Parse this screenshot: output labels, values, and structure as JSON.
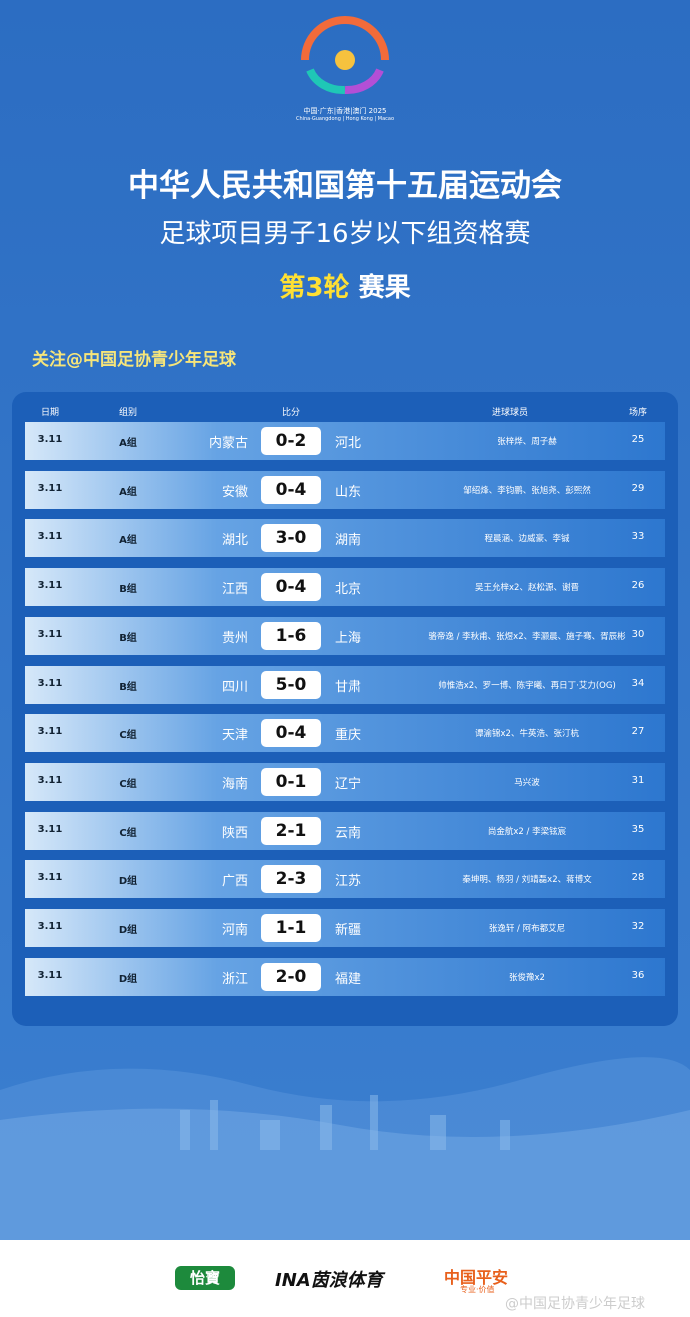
{
  "logo": {
    "caption": "中国·广东|香港|澳门 2025",
    "caption_en": "China·Guangdong | Hong Kong | Macao"
  },
  "header": {
    "title": "中华人民共和国第十五届运动会",
    "subtitle": "足球项目男子16岁以下组资格赛",
    "round": "第3轮",
    "results": "赛果"
  },
  "follow": "关注@中国足协青少年足球",
  "table": {
    "columns": [
      "日期",
      "组别",
      "比分",
      "进球球员",
      "场序"
    ],
    "rows": [
      [
        "3.11",
        "A组",
        "内蒙古",
        "0-2",
        "河北",
        "张梓烨、周子赫",
        25
      ],
      [
        "3.11",
        "A组",
        "安徽",
        "0-4",
        "山东",
        "邹绍烽、李钧鹏、张旭尧、彭熙然",
        29
      ],
      [
        "3.11",
        "A组",
        "湖北",
        "3-0",
        "湖南",
        "程晨涵、边威豪、李铖",
        33
      ],
      [
        "3.11",
        "B组",
        "江西",
        "0-4",
        "北京",
        "吴王允梓x2、赵松源、谢晋",
        26
      ],
      [
        "3.11",
        "B组",
        "贵州",
        "1-6",
        "上海",
        "骆帝逸 / 李秋甫、张煜x2、李灏晨、施子骞、胥辰彬",
        30
      ],
      [
        "3.11",
        "B组",
        "四川",
        "5-0",
        "甘肃",
        "帅惟浩x2、罗一博、陈宇曦、再日丁·艾力(OG)",
        34
      ],
      [
        "3.11",
        "C组",
        "天津",
        "0-4",
        "重庆",
        "谭渝锦x2、牛英浩、张汀杭",
        27
      ],
      [
        "3.11",
        "C组",
        "海南",
        "0-1",
        "辽宁",
        "马兴波",
        31
      ],
      [
        "3.11",
        "C组",
        "陕西",
        "2-1",
        "云南",
        "尚金航x2 / 李梁铉宸",
        35
      ],
      [
        "3.11",
        "D组",
        "广西",
        "2-3",
        "江苏",
        "秦坤明、杨羽 / 刘靖磊x2、蒋博文",
        28
      ],
      [
        "3.11",
        "D组",
        "河南",
        "1-1",
        "新疆",
        "张逸轩 / 阿布都艾尼",
        32
      ],
      [
        "3.11",
        "D组",
        "浙江",
        "2-0",
        "福建",
        "张俊豫x2",
        36
      ]
    ]
  },
  "sponsors": [
    "怡寶",
    "INA茵浪体育",
    "中国平安",
    "专业·价值"
  ],
  "watermark": "@中国足协青少年足球"
}
